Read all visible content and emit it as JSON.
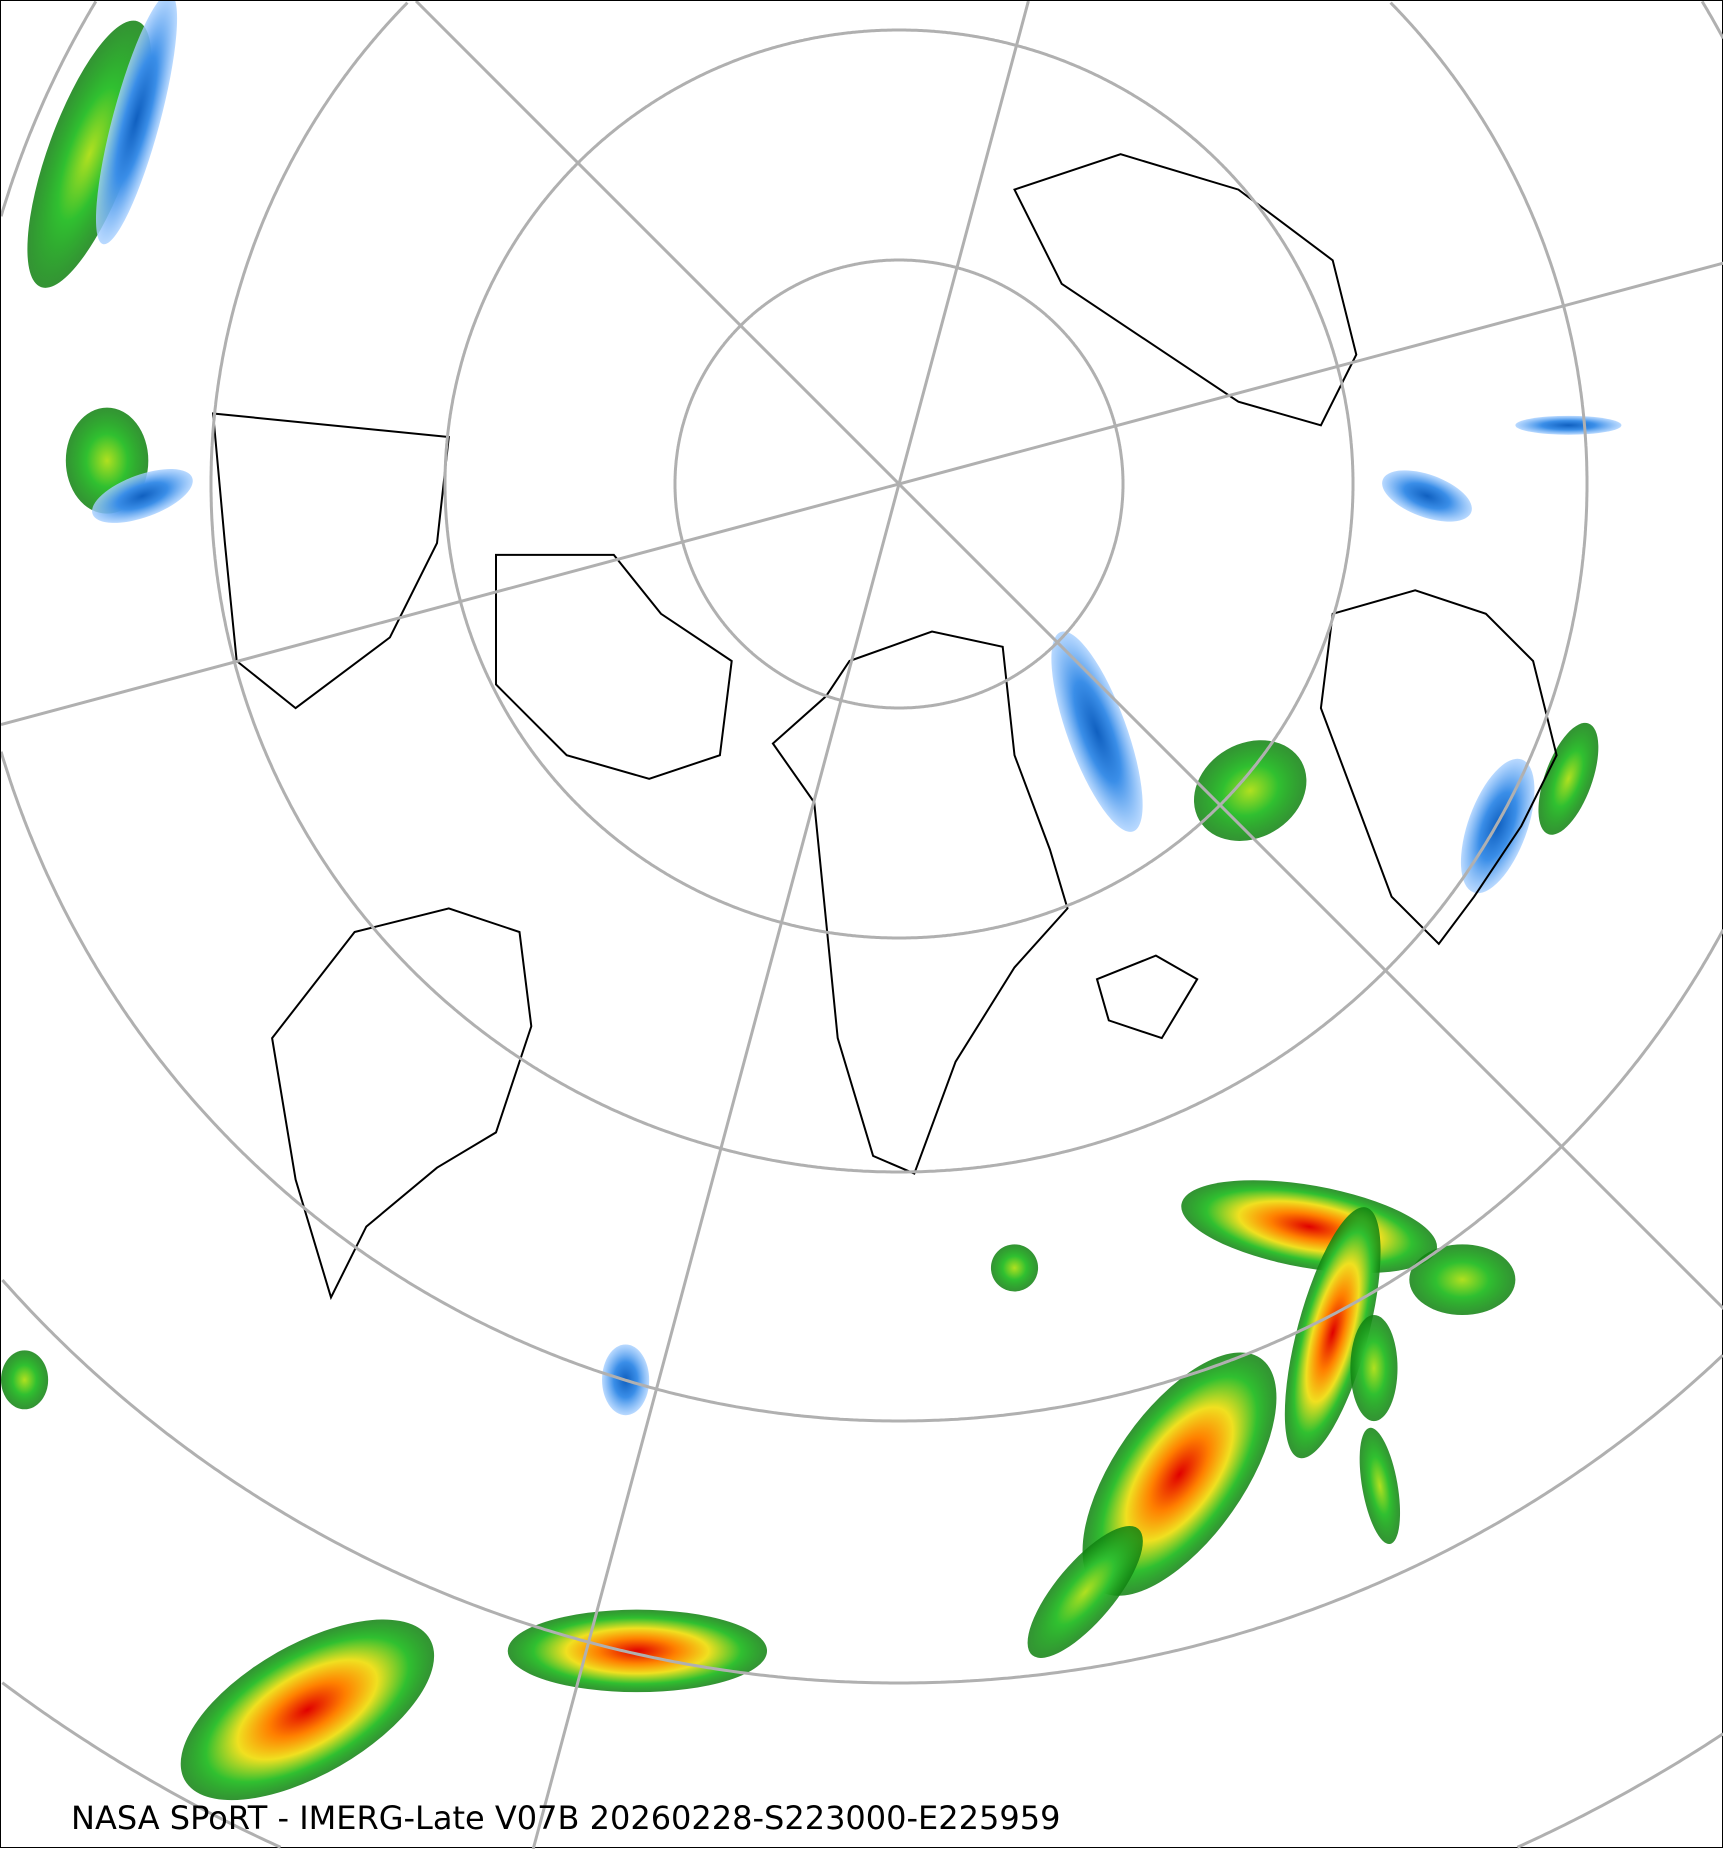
{
  "map": {
    "projection": "north-polar-stereographic",
    "caption": "NASA SPoRT - IMERG-Late V07B 20260228-S223000-E225959",
    "layers": [
      "precipitation-rate",
      "coastlines",
      "political-borders",
      "graticule"
    ],
    "colors": {
      "graticule": "#b0b0b0",
      "coastline": "#000000",
      "light_snow": "#a8d0ff",
      "snow": "#3a8ee8",
      "heavy_snow": "#1060c0",
      "light_rain": "#30c030",
      "rain": "#108010",
      "moderate": "#f0e020",
      "heavy": "#ff8000",
      "very_heavy": "#e00000",
      "mixed": "#e070e0"
    }
  }
}
